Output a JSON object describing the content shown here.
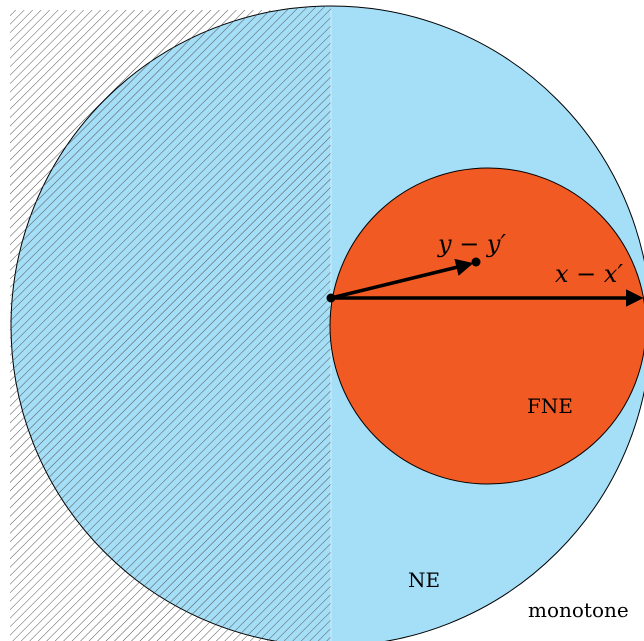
{
  "regions": {
    "monotone": {
      "label": "monotone",
      "pattern": "diagonal-hatch"
    },
    "nonexpansive": {
      "label": "NE",
      "fill": "#a4def7"
    },
    "firmly_nonexpansive": {
      "label": "FNE",
      "fill": "#f15a22"
    }
  },
  "vectors": {
    "x_diff": {
      "label": "x − x′"
    },
    "y_diff": {
      "label": "y − y′"
    }
  },
  "colors": {
    "outline": "#000000",
    "hatch": "#555555"
  }
}
